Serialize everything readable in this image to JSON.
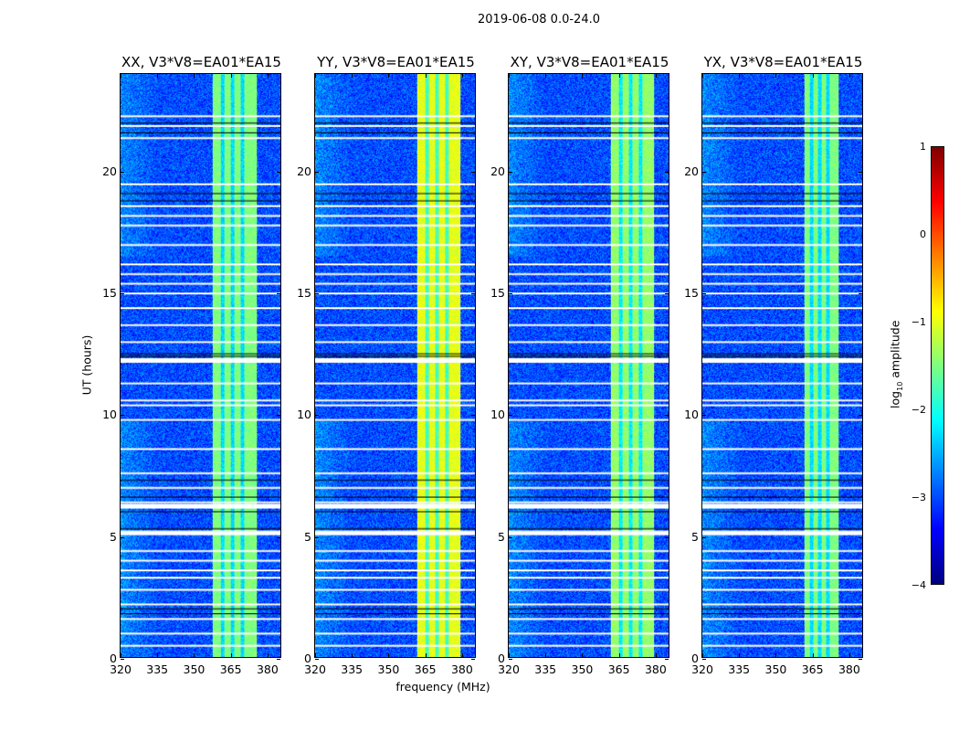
{
  "chart_data": {
    "type": "heatmap",
    "title": "2019-06-08 0.0-24.0",
    "xlabel": "frequency (MHz)",
    "ylabel": "UT (hours)",
    "xlim": [
      320,
      386
    ],
    "ylim": [
      0,
      24
    ],
    "xticks": [
      "320",
      "335",
      "350",
      "365",
      "380"
    ],
    "xtick_values": [
      320,
      335,
      350,
      365,
      380
    ],
    "yticks": [
      "0",
      "5",
      "10",
      "15",
      "20"
    ],
    "ytick_values": [
      0,
      5,
      10,
      15,
      20
    ],
    "colorbar": {
      "label": "log10 amplitude",
      "label_main": "log",
      "label_sub": "10",
      "label_tail": " amplitude",
      "range": [
        -4,
        1
      ],
      "ticks": [
        "1",
        "0",
        "−1",
        "−2",
        "−3",
        "−4"
      ],
      "tick_values": [
        1,
        0,
        -1,
        -2,
        -3,
        -4
      ],
      "colormap": "jet"
    },
    "panels": [
      {
        "title": "XX, V3*V8=EA01*EA15",
        "background_level": -3.0,
        "band_level": -1.5,
        "band_mhz": [
          358,
          376
        ]
      },
      {
        "title": "YY, V3*V8=EA01*EA15",
        "background_level": -3.0,
        "band_level": -1.0,
        "band_mhz": [
          362,
          380
        ]
      },
      {
        "title": "XY, V3*V8=EA01*EA15",
        "background_level": -3.0,
        "band_level": -1.4,
        "band_mhz": [
          362,
          380
        ]
      },
      {
        "title": "YX, V3*V8=EA01*EA15",
        "background_level": -3.0,
        "band_level": -1.5,
        "band_mhz": [
          362,
          376
        ]
      }
    ],
    "flagged_hours_white": [
      22.3,
      21.9,
      21.4,
      19.5,
      18.6,
      18.2,
      17.8,
      17.0,
      16.2,
      15.8,
      15.4,
      15.0,
      14.4,
      13.7,
      13.0,
      12.3,
      11.3,
      10.6,
      10.4,
      9.8,
      8.6,
      7.6,
      7.0,
      6.4,
      6.3,
      5.2,
      5.1,
      4.4,
      4.0,
      3.6,
      3.3,
      2.8,
      2.2,
      1.6,
      1.0,
      0.5
    ],
    "flagged_hours_black": [
      22.0,
      21.6,
      19.1,
      18.8,
      12.5,
      12.4,
      7.3,
      6.6,
      6.0,
      5.3,
      2.0,
      1.8
    ]
  }
}
